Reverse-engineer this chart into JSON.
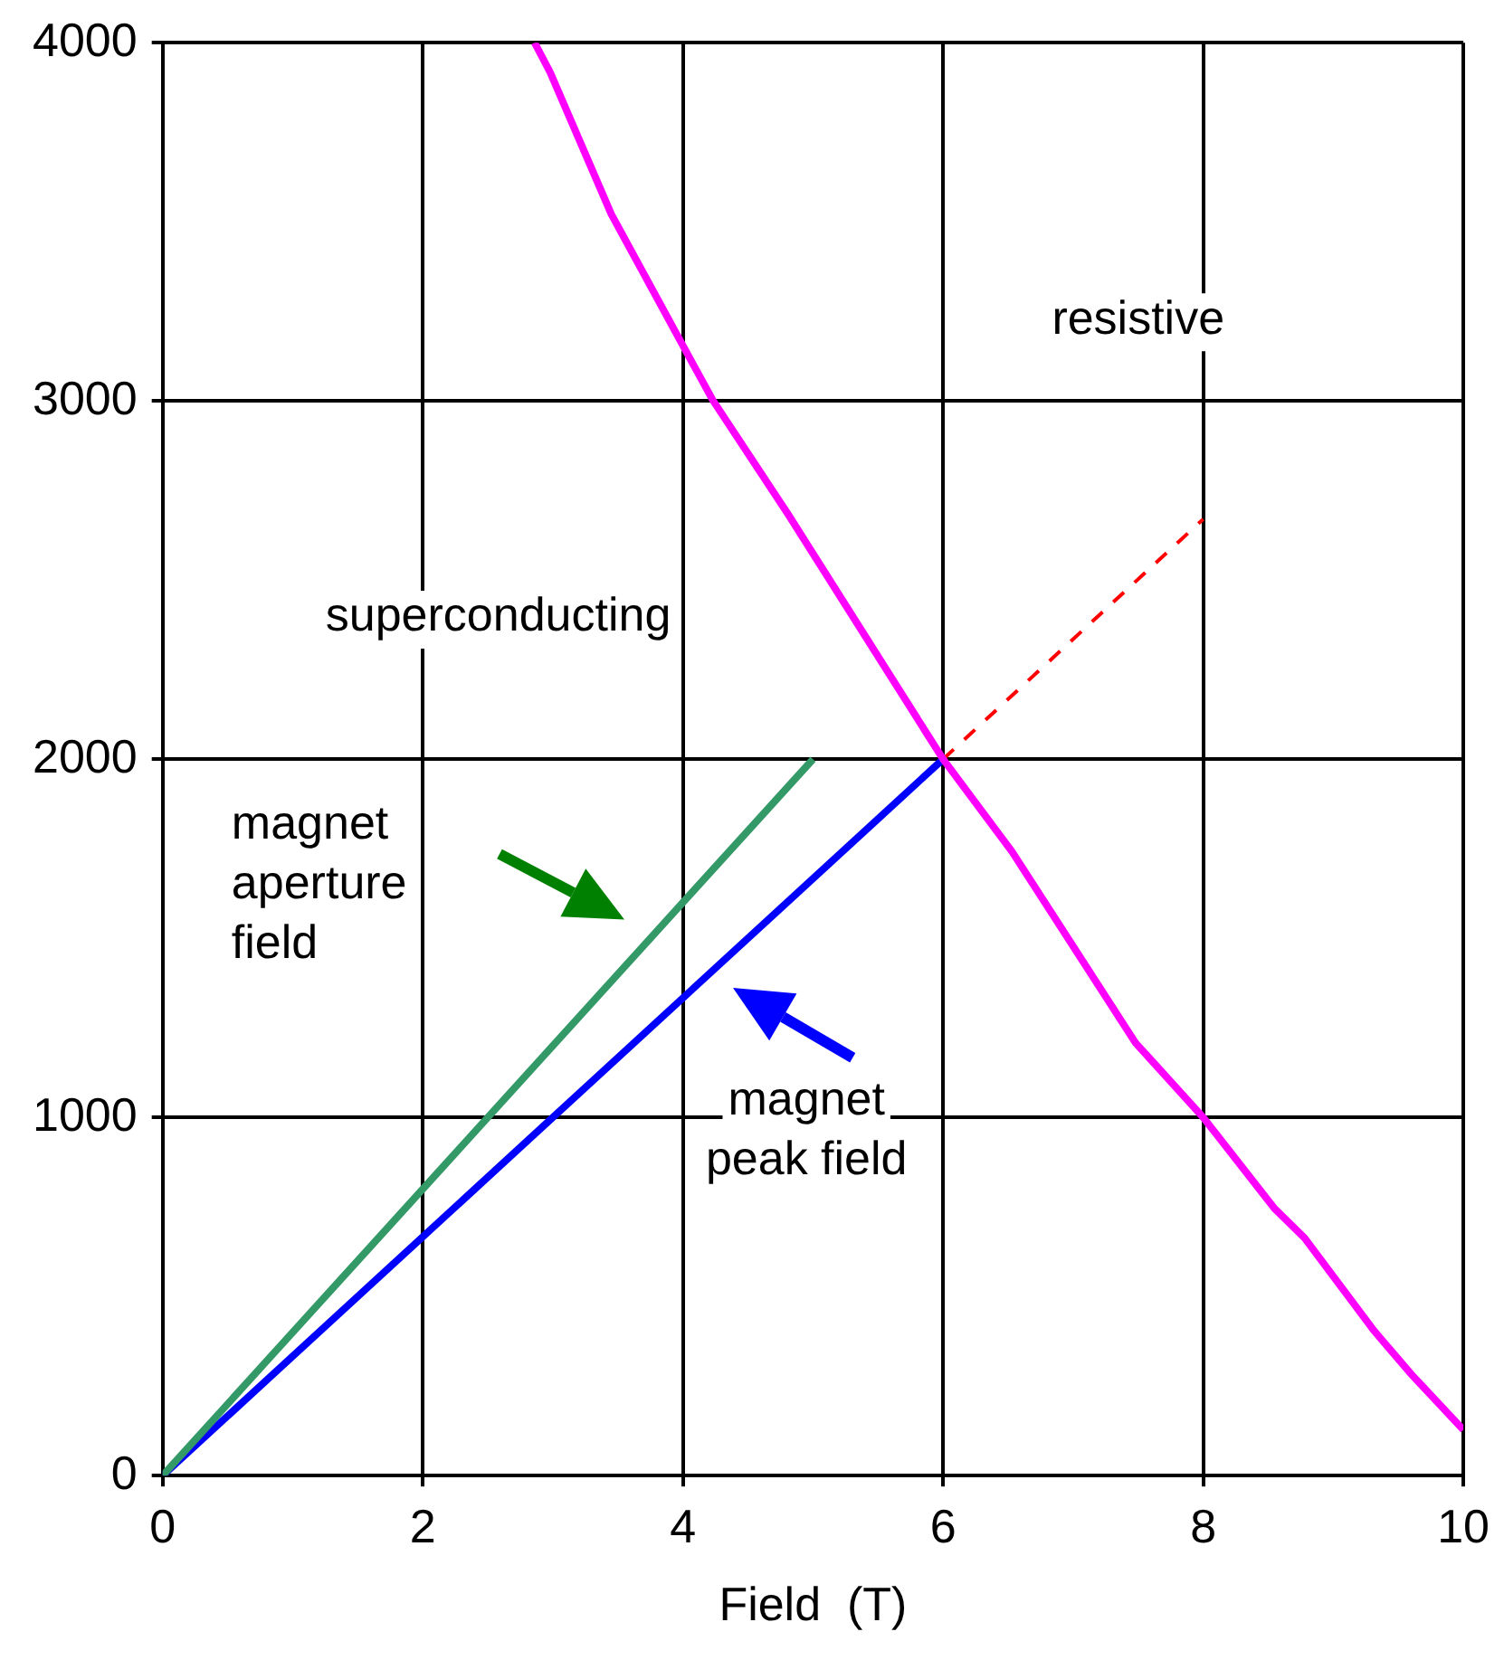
{
  "chart_data": {
    "type": "line",
    "xlabel": "Field  (T)",
    "xlim": [
      0,
      10
    ],
    "xticks": [
      0,
      2,
      4,
      6,
      8,
      10
    ],
    "ylim": [
      0,
      4000
    ],
    "yticks": [
      0,
      1000,
      2000,
      3000,
      4000
    ],
    "grid": true,
    "legend": false,
    "marker": "none",
    "series": [
      {
        "color": "#ff00ff",
        "line_style": "solid",
        "x": [
          2.86,
          2.98,
          3.45,
          3.99,
          4.23,
          4.81,
          6,
          6.53,
          7.48,
          8,
          8.55,
          8.78,
          9.31,
          9.6,
          10
        ],
        "values": [
          4000,
          3917,
          3521,
          3161,
          3002,
          2683,
          2000,
          1742,
          1208,
          1000,
          745,
          663,
          406,
          283,
          128
        ]
      },
      {
        "color": "#339966",
        "line_style": "solid",
        "x": [
          0,
          5
        ],
        "values": [
          0,
          2000
        ]
      },
      {
        "color": "#0000ff",
        "line_style": "solid",
        "x": [
          0,
          6
        ],
        "values": [
          0,
          2000
        ]
      },
      {
        "color": "#ff0000",
        "line_style": "dashed",
        "x": [
          6,
          8
        ],
        "values": [
          2000,
          2670
        ]
      }
    ],
    "annotations": [
      "magnet aperture field",
      "magnet peak field",
      "resistive",
      "superconducting"
    ]
  }
}
